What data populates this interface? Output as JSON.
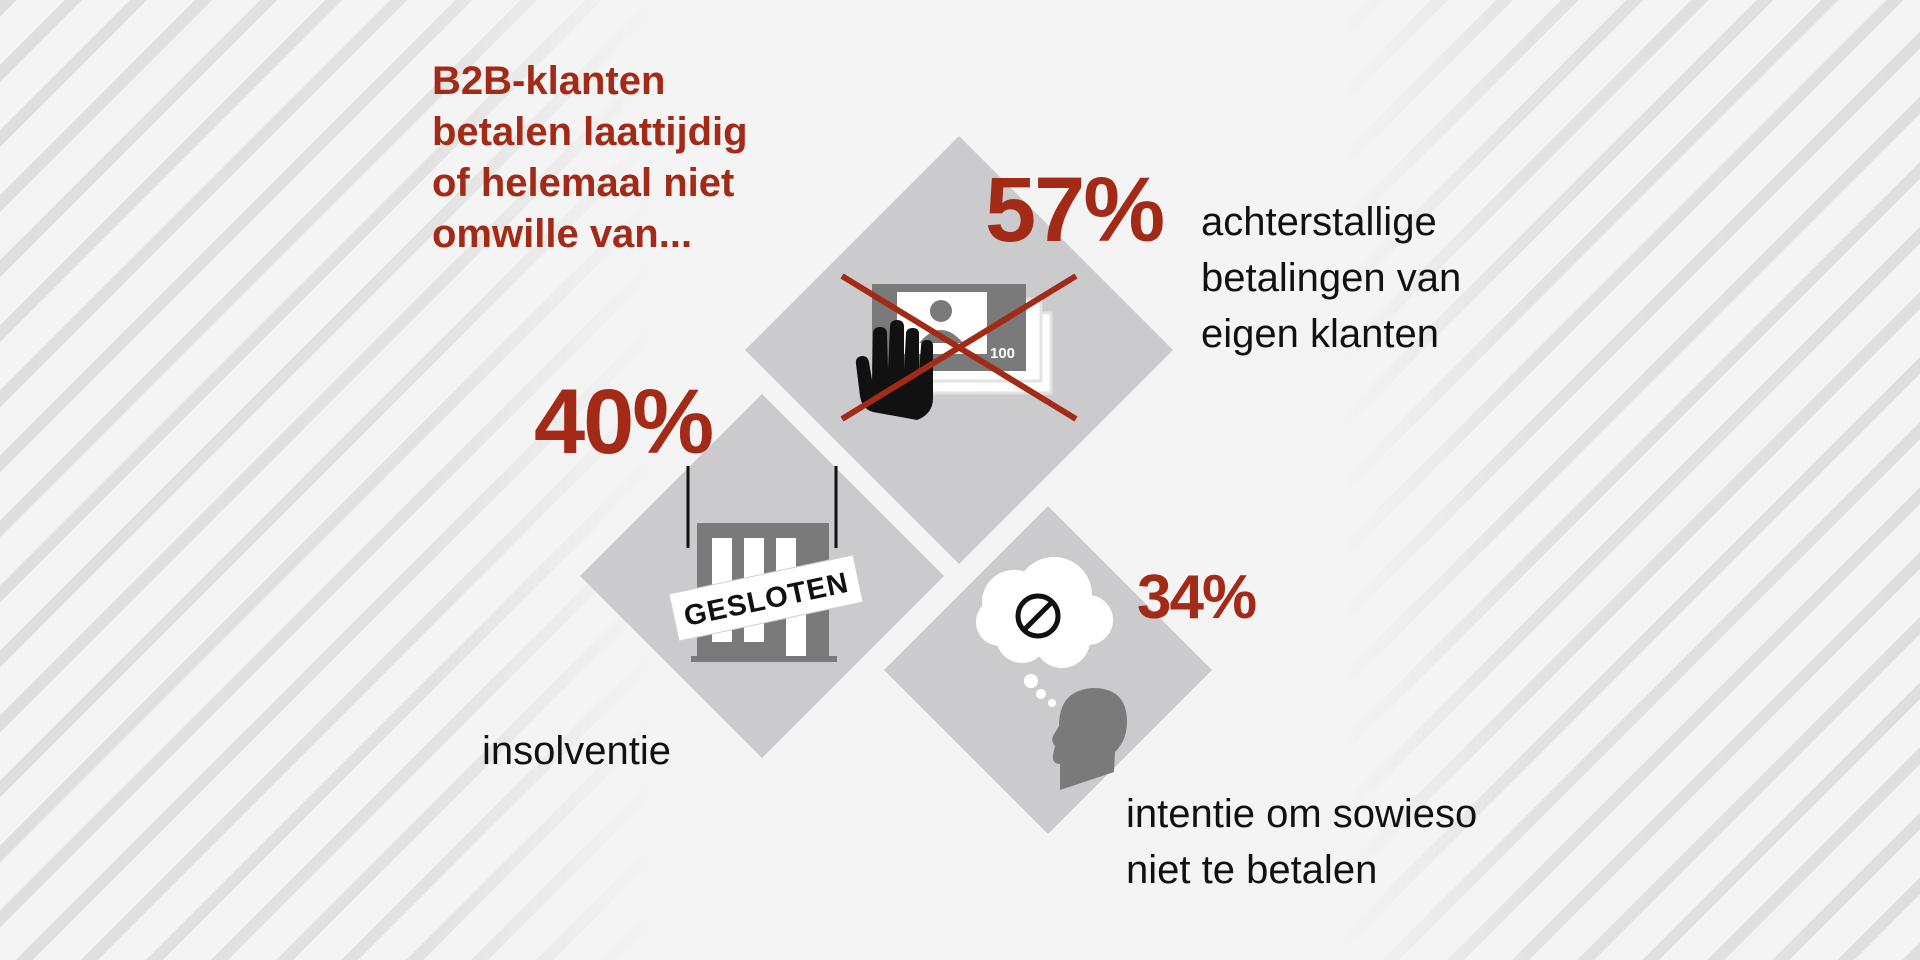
{
  "headline": {
    "lines": [
      "B2B-klanten",
      "betalen laattijdig",
      "of helemaal niet",
      "omwille van..."
    ]
  },
  "stats": [
    {
      "percent": "57%",
      "label_lines": [
        "achterstallige",
        "betalingen van",
        "eigen klanten"
      ],
      "icon": "blocked-payment-icon",
      "icon_badge": "100"
    },
    {
      "percent": "40%",
      "label_lines": [
        "insolventie"
      ],
      "icon": "closed-building-icon",
      "sign_text": "GESLOTEN"
    },
    {
      "percent": "34%",
      "label_lines": [
        "intentie om sowieso",
        "niet te betalen"
      ],
      "icon": "thinking-head-icon"
    }
  ],
  "colors": {
    "accent": "#a32a16",
    "background": "#f4f4f4",
    "diamond": "#cbcbcd",
    "icon_dark": "#7a7a7a"
  }
}
